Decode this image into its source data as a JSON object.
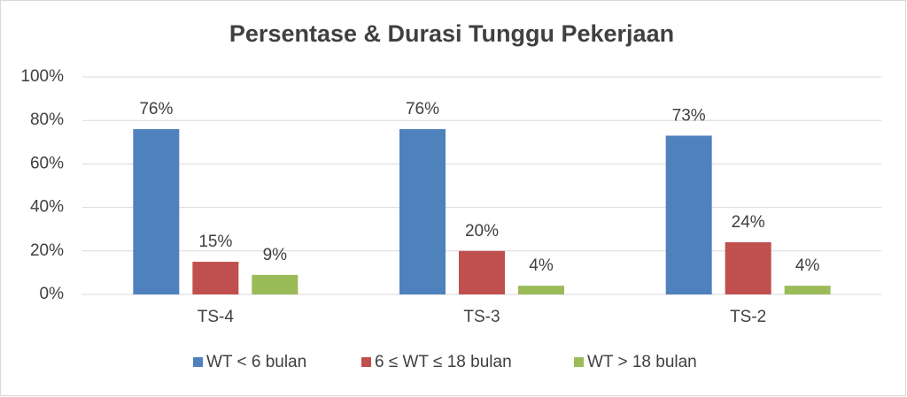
{
  "chart_data": {
    "type": "bar",
    "title": "Persentase & Durasi Tunggu Pekerjaan",
    "categories": [
      "TS-4",
      "TS-3",
      "TS-2"
    ],
    "series": [
      {
        "name": "WT < 6 bulan",
        "color": "#4f81bd",
        "values": [
          76,
          76,
          73
        ],
        "value_labels": [
          "76%",
          "76%",
          "73%"
        ]
      },
      {
        "name": "6 ≤ WT ≤ 18 bulan",
        "color": "#c0504d",
        "values": [
          15,
          20,
          24
        ],
        "value_labels": [
          "15%",
          "20%",
          "24%"
        ]
      },
      {
        "name": "WT > 18 bulan",
        "color": "#9bbb59",
        "values": [
          9,
          4,
          4
        ],
        "value_labels": [
          "9%",
          "4%",
          "4%"
        ]
      }
    ],
    "ylim": [
      0,
      100
    ],
    "yticks": [
      {
        "value": 0,
        "label": "0%"
      },
      {
        "value": 20,
        "label": "20%"
      },
      {
        "value": 40,
        "label": "40%"
      },
      {
        "value": 60,
        "label": "60%"
      },
      {
        "value": 80,
        "label": "80%"
      },
      {
        "value": 100,
        "label": "100%"
      }
    ],
    "grid": true,
    "legend": "bottom"
  }
}
